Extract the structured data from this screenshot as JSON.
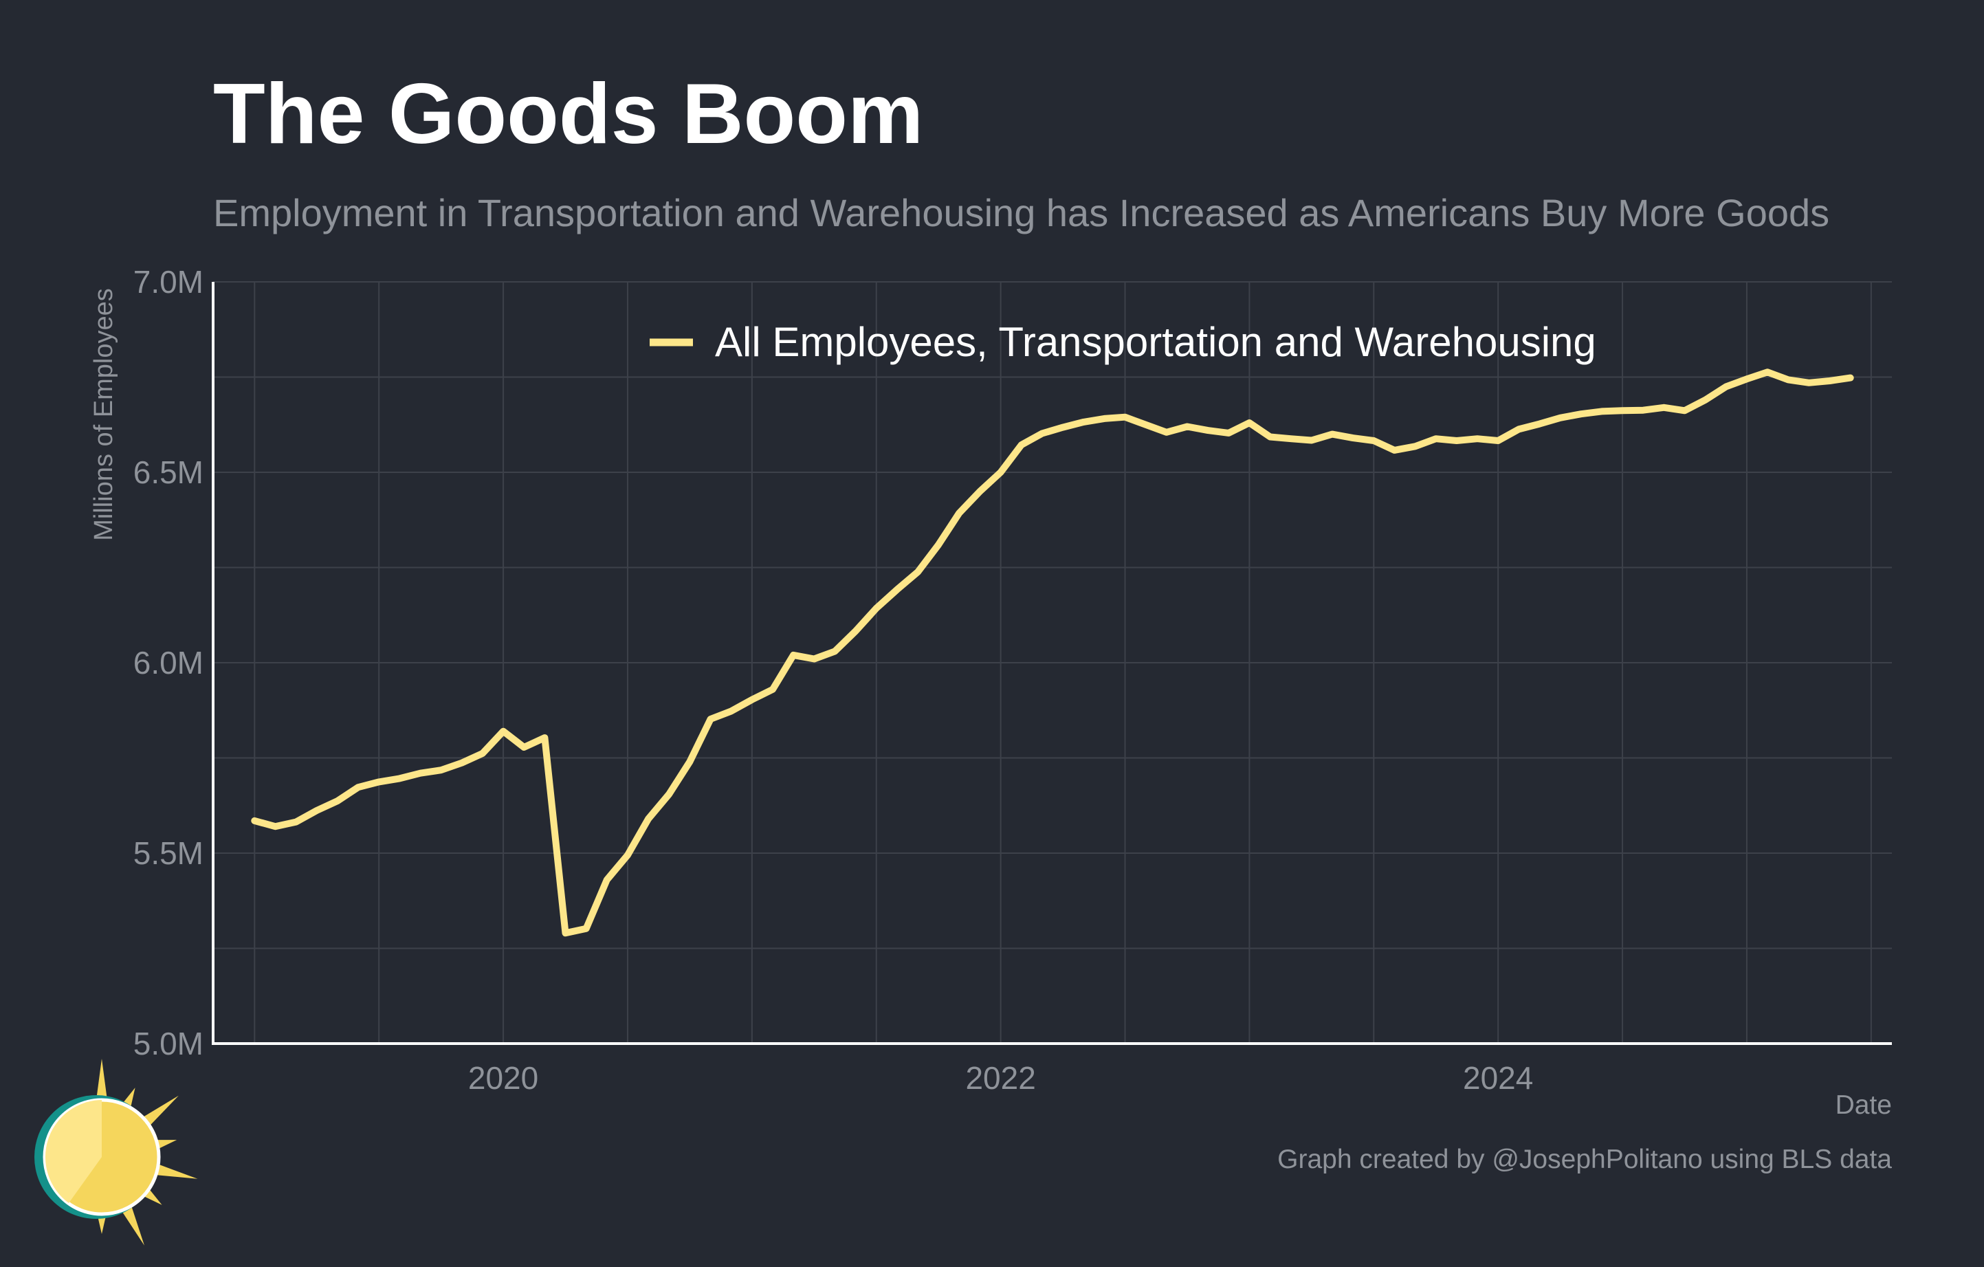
{
  "title": "The Goods Boom",
  "subtitle": "Employment in Transportation and Warehousing has Increased as Americans Buy More Goods",
  "caption": "Graph created by @JosephPolitano using BLS data",
  "colors": {
    "background": "#252932",
    "line": "#fde68a",
    "grid": "#3d414a",
    "axis": "#ffffff",
    "muted_text": "#8f939a"
  },
  "chart_data": {
    "type": "line",
    "title": "The Goods Boom",
    "subtitle": "Employment in Transportation and Warehousing has Increased as Americans Buy More Goods",
    "xlabel": "Date",
    "ylabel": "Millions of Employees",
    "ylim": [
      5.0,
      7.0
    ],
    "xlim": [
      "2018-11",
      "2025-08"
    ],
    "y_ticks": [
      {
        "value": 5.0,
        "label": "5.0M"
      },
      {
        "value": 5.5,
        "label": "5.5M"
      },
      {
        "value": 6.0,
        "label": "6.0M"
      },
      {
        "value": 6.5,
        "label": "6.5M"
      },
      {
        "value": 7.0,
        "label": "7.0M"
      }
    ],
    "x_ticks": [
      {
        "value": "2020-01",
        "label": "2020"
      },
      {
        "value": "2022-01",
        "label": "2022"
      },
      {
        "value": "2024-01",
        "label": "2024"
      }
    ],
    "grid": true,
    "legend": {
      "position": "top-center"
    },
    "series": [
      {
        "name": "All Employees, Transportation and Warehousing",
        "color": "#fde68a",
        "x": [
          "2019-01",
          "2019-02",
          "2019-03",
          "2019-04",
          "2019-05",
          "2019-06",
          "2019-07",
          "2019-08",
          "2019-09",
          "2019-10",
          "2019-11",
          "2019-12",
          "2020-01",
          "2020-02",
          "2020-03",
          "2020-04",
          "2020-05",
          "2020-06",
          "2020-07",
          "2020-08",
          "2020-09",
          "2020-10",
          "2020-11",
          "2020-12",
          "2021-01",
          "2021-02",
          "2021-03",
          "2021-04",
          "2021-05",
          "2021-06",
          "2021-07",
          "2021-08",
          "2021-09",
          "2021-10",
          "2021-11",
          "2021-12",
          "2022-01",
          "2022-02",
          "2022-03",
          "2022-04",
          "2022-05",
          "2022-06",
          "2022-07",
          "2022-08",
          "2022-09",
          "2022-10",
          "2022-11",
          "2022-12",
          "2023-01",
          "2023-02",
          "2023-03",
          "2023-04",
          "2023-05",
          "2023-06",
          "2023-07",
          "2023-08",
          "2023-09",
          "2023-10",
          "2023-11",
          "2023-12",
          "2024-01",
          "2024-02",
          "2024-03",
          "2024-04",
          "2024-05",
          "2024-06",
          "2024-07",
          "2024-08",
          "2024-09",
          "2024-10",
          "2024-11",
          "2024-12",
          "2025-01",
          "2025-02",
          "2025-03",
          "2025-04",
          "2025-05",
          "2025-06"
        ],
        "values": [
          5.585,
          5.57,
          5.582,
          5.612,
          5.637,
          5.673,
          5.687,
          5.696,
          5.71,
          5.718,
          5.737,
          5.762,
          5.82,
          5.778,
          5.803,
          5.29,
          5.302,
          5.43,
          5.495,
          5.59,
          5.655,
          5.74,
          5.852,
          5.873,
          5.903,
          5.93,
          6.02,
          6.01,
          6.03,
          6.083,
          6.143,
          6.192,
          6.238,
          6.31,
          6.393,
          6.45,
          6.5,
          6.572,
          6.602,
          6.618,
          6.632,
          6.641,
          6.645,
          6.625,
          6.605,
          6.62,
          6.61,
          6.603,
          6.63,
          6.593,
          6.588,
          6.584,
          6.6,
          6.59,
          6.583,
          6.558,
          6.568,
          6.588,
          6.583,
          6.588,
          6.583,
          6.613,
          6.627,
          6.643,
          6.653,
          6.66,
          6.662,
          6.663,
          6.67,
          6.662,
          6.69,
          6.725,
          6.745,
          6.763,
          6.743,
          6.735,
          6.74,
          6.748
        ]
      }
    ]
  }
}
